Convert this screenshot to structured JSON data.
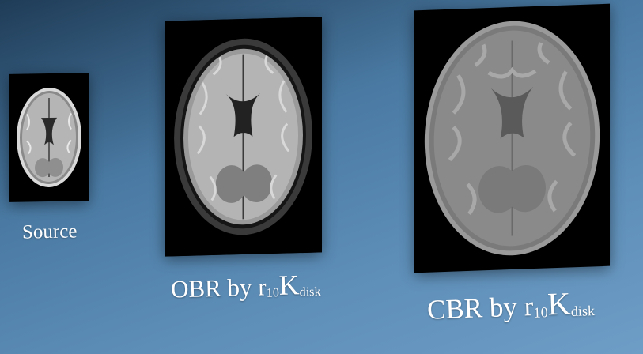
{
  "panels": [
    {
      "id": "source",
      "caption": {
        "text": "Source"
      }
    },
    {
      "id": "obr",
      "caption": {
        "method": "OBR by ",
        "r": "r",
        "r_sub": "10",
        "K": "K",
        "K_sub": "disk"
      }
    },
    {
      "id": "cbr",
      "caption": {
        "method": "CBR by ",
        "r": "r",
        "r_sub": "10",
        "K": "K",
        "K_sub": "disk"
      }
    }
  ],
  "colors": {
    "background_dark": "#1f3c57",
    "background_light": "#6e9dc6",
    "panel_background": "#000000",
    "caption_text": "#ffffff"
  }
}
